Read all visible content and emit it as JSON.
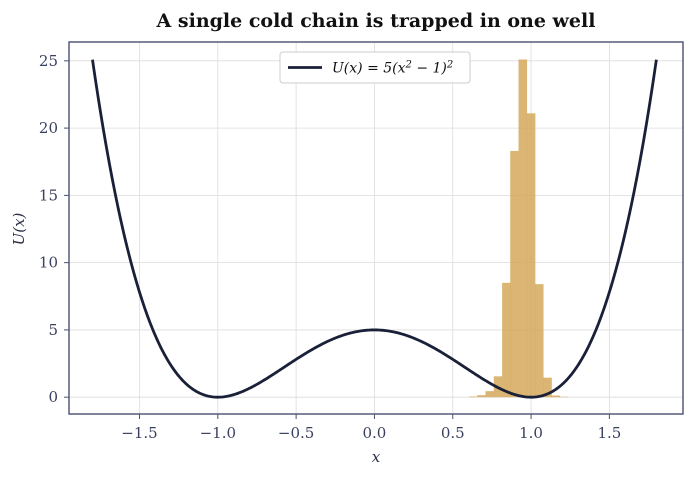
{
  "chart_data": {
    "type": "line",
    "title": "A single cold chain is trapped in one well",
    "xlabel": "x",
    "ylabel": "U(x)",
    "xlim": [
      -1.95,
      1.97
    ],
    "ylim": [
      -1.25,
      26.4
    ],
    "xticks": [
      -1.5,
      -1.0,
      -0.5,
      0.0,
      0.5,
      1.0,
      1.5
    ],
    "xtick_labels": [
      "−1.5",
      "−1.0",
      "−0.5",
      "0.0",
      "0.5",
      "1.0",
      "1.5"
    ],
    "yticks": [
      0,
      5,
      10,
      15,
      20,
      25
    ],
    "ytick_labels": [
      "0",
      "5",
      "10",
      "15",
      "20",
      "25"
    ],
    "grid": true,
    "legend": {
      "position": "top-center",
      "entries": [
        {
          "label": "U(x) = 5(x² − 1)²",
          "label_parts": [
            "U(x) = 5(x",
            "2",
            " − 1)",
            "2"
          ]
        }
      ]
    },
    "series": [
      {
        "name": "U(x) = 5(x² − 1)²",
        "kind": "line",
        "formula": "5*(x^2-1)^2",
        "x_range": [
          -1.8,
          1.8
        ],
        "color": "#1a2038"
      },
      {
        "kind": "histogram",
        "color": "#d4a85a",
        "bin_width": 0.0526,
        "bins_left": [
          0.604,
          0.657,
          0.709,
          0.762,
          0.815,
          0.867,
          0.92,
          0.973,
          1.025,
          1.078,
          1.131,
          1.183
        ],
        "values": [
          0.05,
          0.15,
          0.45,
          1.55,
          8.5,
          18.3,
          25.1,
          21.1,
          8.4,
          1.45,
          0.12,
          0.03
        ]
      }
    ]
  }
}
